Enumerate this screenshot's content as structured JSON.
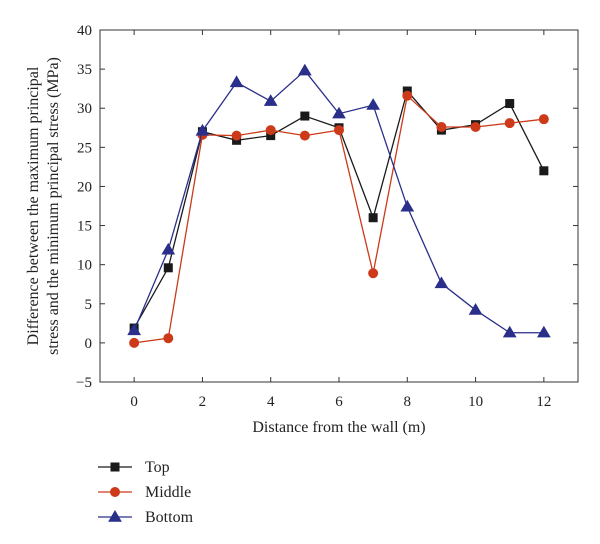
{
  "chart_data": {
    "type": "line",
    "title": "",
    "xlabel": "Distance from the wall (m)",
    "ylabel_lines": [
      "Difference between the maximum principal",
      "stress and the minimum principal stress (MPa)"
    ],
    "xlim": [
      -1,
      13
    ],
    "ylim": [
      -5,
      40
    ],
    "x_ticks": [
      0,
      2,
      4,
      6,
      8,
      10,
      12
    ],
    "y_ticks": [
      -5,
      0,
      5,
      10,
      15,
      20,
      25,
      30,
      35,
      40
    ],
    "x_tick_labels": [
      "0",
      "2",
      "4",
      "6",
      "8",
      "10",
      "12"
    ],
    "y_tick_labels": [
      "−5",
      "0",
      "5",
      "10",
      "15",
      "20",
      "25",
      "30",
      "35",
      "40"
    ],
    "x": [
      0,
      1,
      2,
      3,
      4,
      5,
      6,
      7,
      8,
      9,
      10,
      11,
      12
    ],
    "legend_position": "bottom-left, below plot",
    "series": [
      {
        "name": "Top",
        "color": "#1a1a1a",
        "marker": "square",
        "values": [
          1.9,
          9.6,
          27.0,
          25.9,
          26.5,
          29.0,
          27.5,
          16.0,
          32.2,
          27.2,
          27.9,
          30.6,
          22.0
        ]
      },
      {
        "name": "Middle",
        "color": "#cc3a1a",
        "marker": "circle",
        "values": [
          0.0,
          0.6,
          26.6,
          26.5,
          27.2,
          26.5,
          27.2,
          8.9,
          31.6,
          27.6,
          27.6,
          28.1,
          28.6
        ]
      },
      {
        "name": "Bottom",
        "color": "#2a2f8a",
        "marker": "triangle",
        "values": [
          1.6,
          11.9,
          27.1,
          33.3,
          30.9,
          34.8,
          29.3,
          30.4,
          17.4,
          7.6,
          4.2,
          1.3,
          1.3
        ]
      }
    ]
  }
}
